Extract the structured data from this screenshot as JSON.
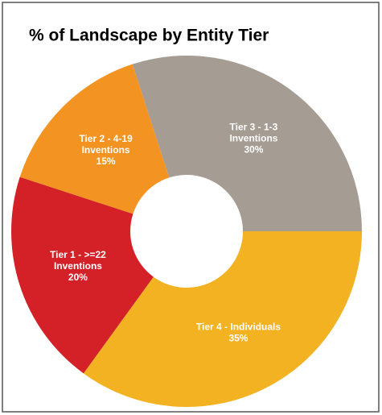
{
  "chart_data": {
    "type": "donut",
    "title": "% of Landscape by Entity Tier",
    "categories": [
      [
        "Tier 3 - 1-3",
        "Inventions"
      ],
      [
        "Tier 4 - Individuals"
      ],
      [
        "Tier 1 -  >=22",
        "Inventions"
      ],
      [
        "Tier 2 - 4-19",
        "Inventions"
      ]
    ],
    "values": [
      30,
      35,
      20,
      15
    ],
    "value_labels": [
      "30%",
      "35%",
      "20%",
      "15%"
    ],
    "colors": [
      "#a59d94",
      "#f2b221",
      "#d42027",
      "#f39322"
    ]
  }
}
